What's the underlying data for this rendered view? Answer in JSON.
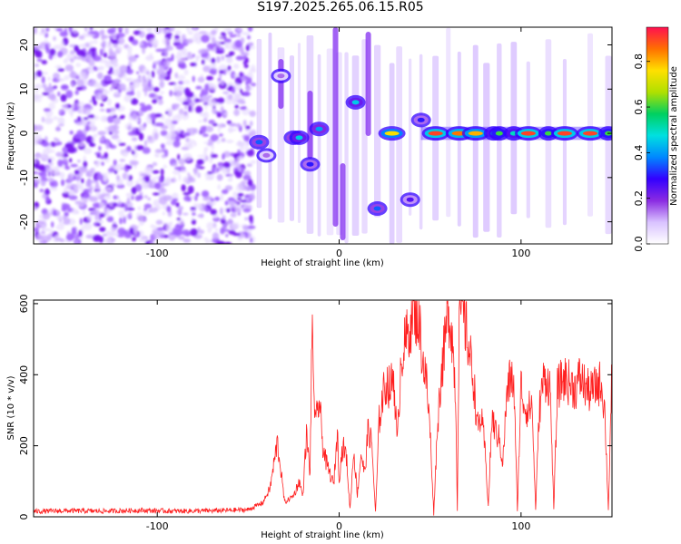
{
  "title": "S197.2025.265.06.15.R05",
  "chart_data": [
    {
      "type": "heatmap",
      "name": "spectrogram",
      "xlabel": "Height of straight line (km)",
      "ylabel": "Frequency (Hz)",
      "xlim": [
        -168,
        150
      ],
      "ylim": [
        -25,
        24
      ],
      "xticks": [
        -100,
        0,
        100
      ],
      "yticks": [
        -20,
        -10,
        0,
        10,
        20
      ],
      "colorbar": {
        "label": "Normalized spectral amplitude",
        "range": [
          0,
          0.95
        ],
        "ticks": [
          0.0,
          0.2,
          0.4,
          0.6,
          0.8
        ],
        "colors": [
          "#ffffff",
          "#d9c2ff",
          "#8a2be2",
          "#3300ff",
          "#0088ff",
          "#00e0e0",
          "#00d060",
          "#b0e000",
          "#ffe000",
          "#ff7000",
          "#ff1050"
        ]
      },
      "features": [
        {
          "x": -44,
          "y": -2,
          "amp": 0.35
        },
        {
          "x": -40,
          "y": -5,
          "amp": 0.15
        },
        {
          "x": -32,
          "y": 13,
          "amp": 0.15
        },
        {
          "x": -25,
          "y": -1,
          "amp": 0.35
        },
        {
          "x": -22,
          "y": -1,
          "amp": 0.45
        },
        {
          "x": -16,
          "y": -7,
          "amp": 0.3
        },
        {
          "x": -11,
          "y": 1,
          "amp": 0.4
        },
        {
          "x": 9,
          "y": 7,
          "amp": 0.45
        },
        {
          "x": 21,
          "y": -17,
          "amp": 0.35
        },
        {
          "x": 29,
          "y": 0,
          "amp": 0.75
        },
        {
          "x": 39,
          "y": -15,
          "amp": 0.25
        },
        {
          "x": 45,
          "y": 3,
          "amp": 0.3
        },
        {
          "x": 53,
          "y": 0,
          "amp": 0.9
        },
        {
          "x": 66,
          "y": 0,
          "amp": 0.85
        },
        {
          "x": 75,
          "y": 0,
          "amp": 0.8
        },
        {
          "x": 85,
          "y": 0,
          "amp": 0.5
        },
        {
          "x": 88,
          "y": 0,
          "amp": 0.6
        },
        {
          "x": 96,
          "y": 0,
          "amp": 0.5
        },
        {
          "x": 104,
          "y": 0,
          "amp": 0.9
        },
        {
          "x": 115,
          "y": 0,
          "amp": 0.6
        },
        {
          "x": 124,
          "y": 0,
          "amp": 0.9
        },
        {
          "x": 138,
          "y": 0,
          "amp": 0.9
        },
        {
          "x": 148,
          "y": 0,
          "amp": 0.6
        }
      ]
    },
    {
      "type": "line",
      "name": "snr",
      "xlabel": "Height of straight line (km)",
      "ylabel": "SNR (10 * v/v)",
      "xlim": [
        -168,
        150
      ],
      "ylim": [
        0,
        610
      ],
      "xticks": [
        -100,
        0,
        100
      ],
      "yticks": [
        0,
        200,
        400,
        600
      ],
      "color": "#ff2020",
      "series": [
        {
          "name": "SNR",
          "x": [
            -168,
            -150,
            -130,
            -110,
            -90,
            -70,
            -50,
            -42,
            -38,
            -34,
            -32,
            -30,
            -25,
            -22,
            -20,
            -18,
            -16,
            -15,
            -13,
            -11,
            -9,
            -7,
            -5,
            -3,
            -1,
            0,
            2,
            4,
            6,
            8,
            10,
            12,
            14,
            16,
            18,
            20,
            22,
            24,
            26,
            28,
            30,
            32,
            34,
            36,
            38,
            40,
            42,
            44,
            46,
            48,
            50,
            52,
            54,
            56,
            58,
            60,
            62,
            64,
            65,
            66,
            68,
            70,
            72,
            74,
            76,
            78,
            80,
            82,
            84,
            86,
            88,
            90,
            92,
            94,
            96,
            98,
            100,
            102,
            104,
            106,
            108,
            110,
            112,
            114,
            116,
            118,
            120,
            122,
            124,
            126,
            128,
            130,
            132,
            134,
            136,
            138,
            140,
            142,
            144,
            146,
            148,
            150
          ],
          "y": [
            15,
            17,
            16,
            18,
            16,
            17,
            20,
            40,
            80,
            210,
            130,
            40,
            60,
            100,
            60,
            230,
            120,
            520,
            250,
            330,
            200,
            150,
            120,
            90,
            240,
            110,
            200,
            170,
            20,
            190,
            60,
            180,
            120,
            250,
            200,
            10,
            270,
            340,
            380,
            360,
            400,
            200,
            450,
            480,
            520,
            570,
            580,
            550,
            440,
            380,
            240,
            10,
            250,
            400,
            480,
            590,
            520,
            350,
            20,
            600,
            580,
            520,
            450,
            380,
            250,
            280,
            200,
            30,
            280,
            240,
            220,
            150,
            330,
            390,
            380,
            20,
            370,
            310,
            300,
            320,
            20,
            300,
            380,
            390,
            360,
            20,
            360,
            380,
            390,
            380,
            370,
            360,
            390,
            380,
            360,
            350,
            360,
            370,
            380,
            300,
            20,
            420
          ]
        }
      ]
    }
  ]
}
